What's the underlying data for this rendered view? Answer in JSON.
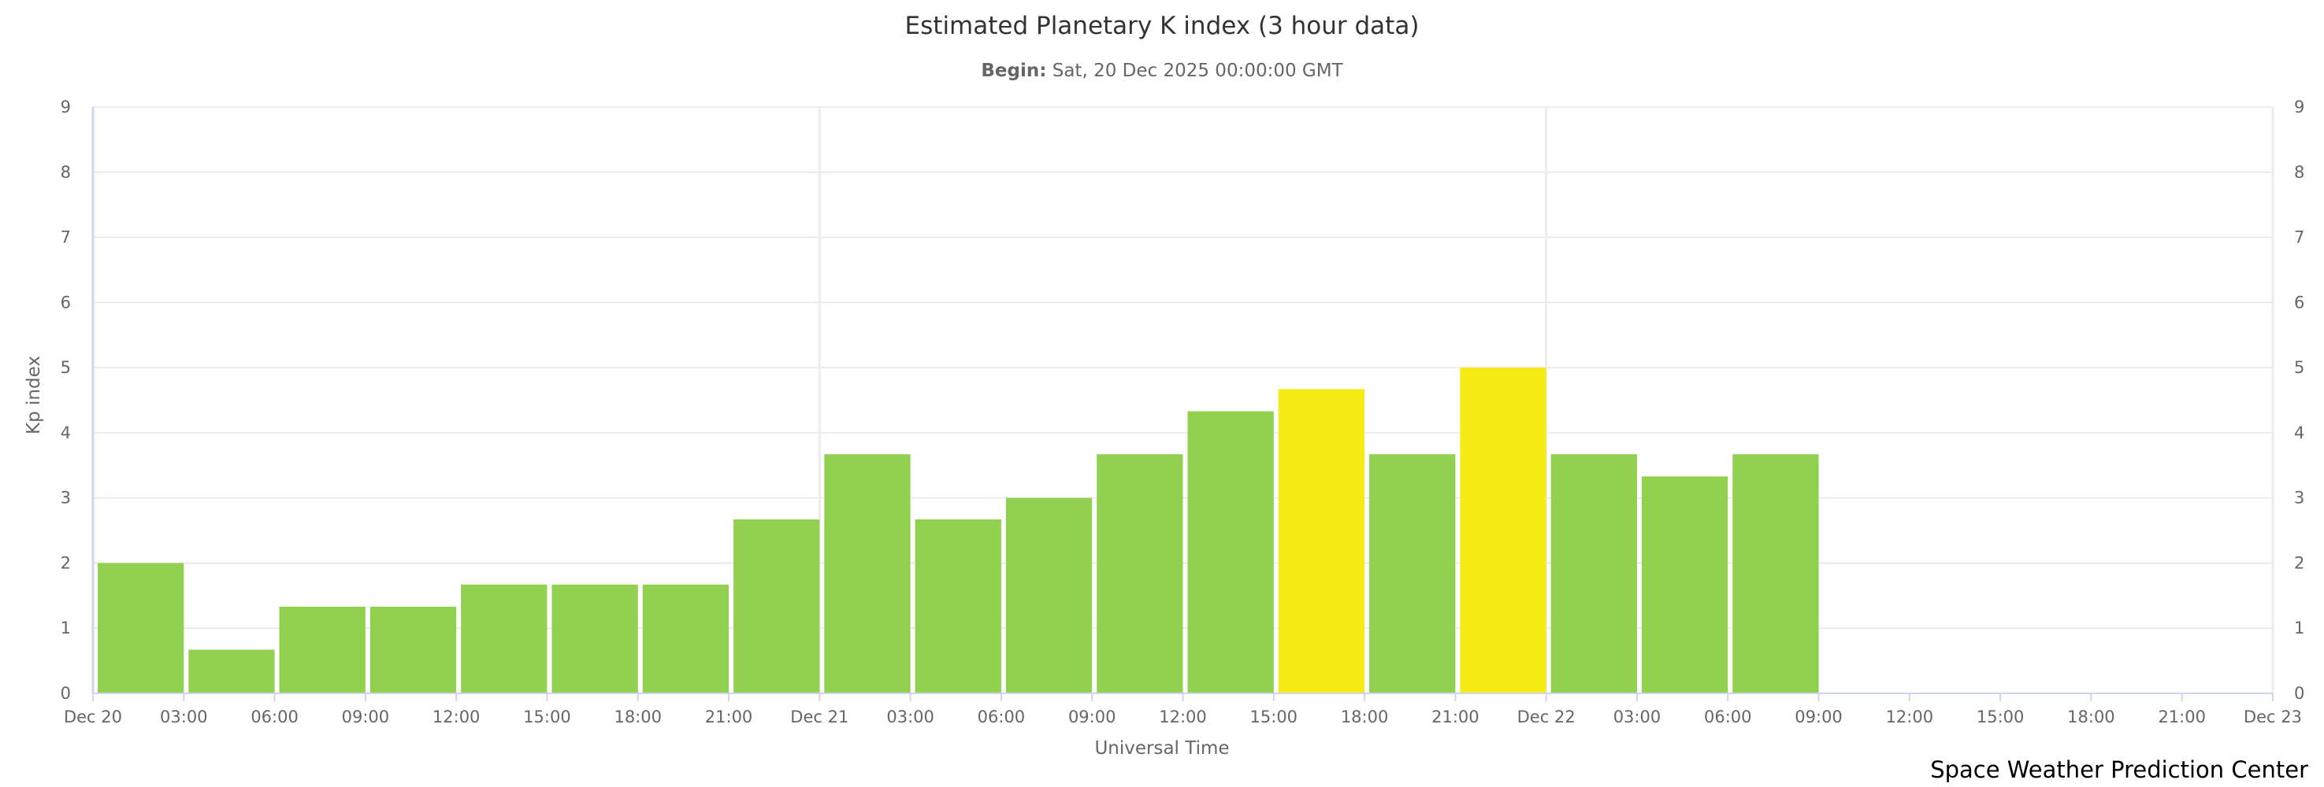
{
  "chart_data": {
    "type": "bar",
    "title": "Estimated Planetary K index (3 hour data)",
    "subtitle_label": "Begin:",
    "subtitle_value": "Sat, 20 Dec 2025 00:00:00 GMT",
    "xlabel": "Universal Time",
    "ylabel": "Kp index",
    "ylim": [
      0,
      9
    ],
    "y_ticks": [
      "0",
      "1",
      "2",
      "3",
      "4",
      "5",
      "6",
      "7",
      "8",
      "9"
    ],
    "x_ticks": [
      "Dec 20",
      "03:00",
      "06:00",
      "09:00",
      "12:00",
      "15:00",
      "18:00",
      "21:00",
      "Dec 21",
      "03:00",
      "06:00",
      "09:00",
      "12:00",
      "15:00",
      "18:00",
      "21:00",
      "Dec 22",
      "03:00",
      "06:00",
      "09:00",
      "12:00",
      "15:00",
      "18:00",
      "21:00",
      "Dec 23"
    ],
    "x_start": "Dec 20 00:00 UTC",
    "bar_interval_hours": 3,
    "values": [
      2,
      0.67,
      1.33,
      1.33,
      1.67,
      1.67,
      1.67,
      2.67,
      3.67,
      2.67,
      3,
      3.67,
      4.33,
      4.67,
      3.67,
      5,
      3.67,
      3.33,
      3.67
    ],
    "grid": true,
    "legend": "none",
    "colors": {
      "below_storm": "#92d050",
      "storm_level": "#f6eb14",
      "grid": "#e6e6e6"
    },
    "credit": "Space Weather Prediction Center"
  }
}
